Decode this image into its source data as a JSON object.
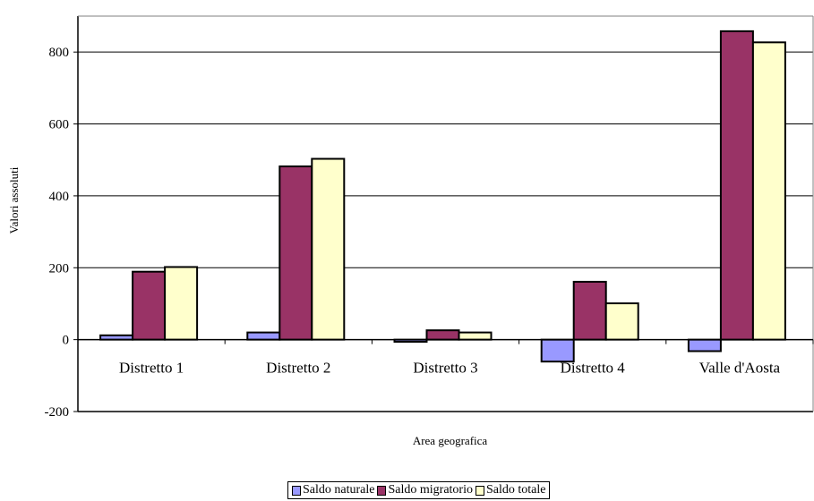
{
  "chart_data": {
    "type": "bar",
    "title": "",
    "xlabel": "Area geografica",
    "ylabel": "Valori assoluti",
    "ylim": [
      -200,
      900
    ],
    "yticks": [
      -200,
      0,
      200,
      400,
      600,
      800
    ],
    "categories": [
      "Distretto 1",
      "Distretto 2",
      "Distretto 3",
      "Distretto 4",
      "Valle d'Aosta"
    ],
    "series": [
      {
        "name": "Saldo naturale",
        "color": "#9999ff",
        "values": [
          12,
          20,
          -6,
          -61,
          -32
        ]
      },
      {
        "name": "Saldo migratorio",
        "color": "#993366",
        "values": [
          189,
          482,
          26,
          161,
          858
        ]
      },
      {
        "name": "Saldo totale",
        "color": "#ffffcc",
        "values": [
          202,
          503,
          20,
          101,
          827
        ]
      }
    ],
    "grid": true,
    "legend_position": "bottom"
  }
}
